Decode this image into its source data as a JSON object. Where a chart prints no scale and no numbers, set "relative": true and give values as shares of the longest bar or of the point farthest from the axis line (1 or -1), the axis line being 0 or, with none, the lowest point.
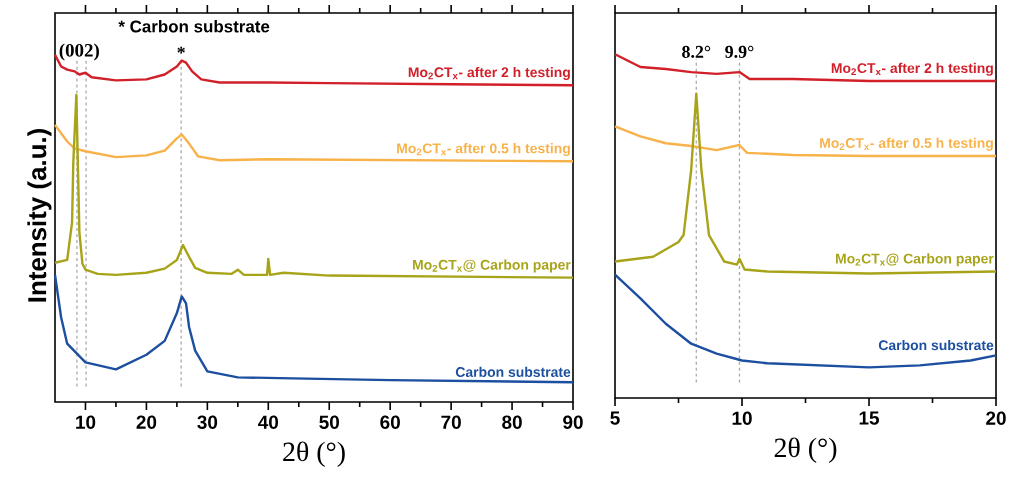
{
  "chart_data": [
    {
      "type": "line",
      "relative": true,
      "ylabel": "Intensity (a.u.)",
      "xlabel": "2θ (°)",
      "xlim": [
        5,
        90
      ],
      "xticks": [
        10,
        20,
        30,
        40,
        50,
        60,
        70,
        80,
        90
      ],
      "tick_labels": "x",
      "annotations": [
        "* Carbon substrate",
        "(002)"
      ],
      "ref_lines": [
        {
          "axis": "x",
          "value": 8.6,
          "label": null,
          "color": "#aaaaaa",
          "line_style": "dashed"
        },
        {
          "axis": "x",
          "value": 10.1,
          "label": null,
          "color": "#aaaaaa",
          "line_style": "dashed"
        },
        {
          "axis": "x",
          "value": 25.7,
          "label": "*",
          "color": "#aaaaaa",
          "line_style": "dashed"
        }
      ],
      "series": [
        {
          "name": "Mo$_{2}$CT$_{x}$- after 2 h testing",
          "color": "#d2202a",
          "x": [
            5,
            6,
            7,
            8.2,
            9,
            10,
            11,
            15,
            20,
            23,
            25,
            25.8,
            26.5,
            27.5,
            29,
            32,
            40,
            50,
            70,
            90
          ],
          "values": [
            1.0,
            0.966,
            0.957,
            0.952,
            0.943,
            0.948,
            0.935,
            0.926,
            0.929,
            0.943,
            0.966,
            0.983,
            0.977,
            0.952,
            0.929,
            0.92,
            0.92,
            0.918,
            0.915,
            0.912
          ]
        },
        {
          "name": "Mo$_{2}$CT$_{x}$- after 0.5 h testing",
          "color": "#f7b24a",
          "x": [
            5,
            7,
            8.2,
            10,
            15,
            20,
            23,
            25,
            25.8,
            27,
            28.5,
            32,
            40,
            90
          ],
          "values": [
            0.798,
            0.75,
            0.73,
            0.722,
            0.705,
            0.71,
            0.724,
            0.759,
            0.77,
            0.744,
            0.707,
            0.696,
            0.699,
            0.693
          ]
        },
        {
          "name": "Mo$_{2}$CT$_{x}$@ Carbon paper",
          "color": "#a8a41a",
          "x": [
            5,
            7,
            7.8,
            8.0,
            8.5,
            9,
            9.5,
            10,
            12,
            15,
            20,
            23,
            25,
            26,
            27,
            28,
            30,
            34,
            35,
            36,
            39.8,
            40,
            40.3,
            42.5,
            50,
            90
          ],
          "values": [
            0.401,
            0.409,
            0.517,
            0.688,
            0.884,
            0.489,
            0.398,
            0.381,
            0.369,
            0.366,
            0.372,
            0.384,
            0.409,
            0.452,
            0.418,
            0.386,
            0.372,
            0.369,
            0.381,
            0.366,
            0.366,
            0.412,
            0.366,
            0.372,
            0.364,
            0.358
          ]
        },
        {
          "name": "Carbon substrate",
          "color": "#1c4fa0",
          "x": [
            5,
            6,
            7,
            10,
            15,
            20,
            23,
            25,
            25.8,
            26.5,
            27,
            28,
            30,
            35,
            44,
            60,
            90
          ],
          "values": [
            0.366,
            0.244,
            0.168,
            0.114,
            0.094,
            0.136,
            0.176,
            0.256,
            0.304,
            0.284,
            0.216,
            0.148,
            0.088,
            0.071,
            0.068,
            0.063,
            0.057
          ]
        }
      ]
    },
    {
      "type": "line",
      "relative": true,
      "xlabel": "2θ (°)",
      "xlim": [
        5,
        20
      ],
      "xticks": [
        5,
        10,
        15,
        20
      ],
      "tick_labels": "x",
      "ref_lines": [
        {
          "axis": "x",
          "value": 8.2,
          "label": "8.2°",
          "color": "#aaaaaa",
          "line_style": "dashed"
        },
        {
          "axis": "x",
          "value": 9.9,
          "label": "9.9°",
          "color": "#aaaaaa",
          "line_style": "dashed"
        }
      ],
      "series": [
        {
          "name": "Mo$_{2}$CT$_{x}$- after 2 h testing",
          "color": "#d2202a",
          "x": [
            5,
            6,
            7,
            8,
            9,
            9.9,
            10.3,
            12,
            15,
            20
          ],
          "values": [
            1.0,
            0.963,
            0.957,
            0.948,
            0.943,
            0.948,
            0.928,
            0.928,
            0.922,
            0.922
          ]
        },
        {
          "name": "Mo$_{2}$CT$_{x}$- after 0.5 h testing",
          "color": "#f7b24a",
          "x": [
            5,
            6,
            7,
            8,
            9,
            9.9,
            10.2,
            12,
            15,
            20
          ],
          "values": [
            0.79,
            0.761,
            0.741,
            0.733,
            0.721,
            0.736,
            0.713,
            0.707,
            0.704,
            0.704
          ]
        },
        {
          "name": "Mo$_{2}$CT$_{x}$@ Carbon paper",
          "color": "#a8a41a",
          "x": [
            5,
            6.5,
            7.5,
            7.7,
            8.0,
            8.2,
            8.4,
            8.7,
            9.3,
            9.8,
            9.9,
            10.1,
            11,
            15,
            20
          ],
          "values": [
            0.397,
            0.411,
            0.454,
            0.474,
            0.664,
            0.885,
            0.664,
            0.474,
            0.397,
            0.388,
            0.405,
            0.374,
            0.368,
            0.362,
            0.368
          ]
        },
        {
          "name": "Carbon substrate",
          "color": "#1c4fa0",
          "x": [
            5,
            6,
            7,
            8,
            9,
            10,
            11,
            13,
            15,
            17,
            19,
            20
          ],
          "values": [
            0.359,
            0.29,
            0.216,
            0.158,
            0.129,
            0.109,
            0.101,
            0.095,
            0.089,
            0.095,
            0.109,
            0.124
          ]
        }
      ]
    }
  ]
}
